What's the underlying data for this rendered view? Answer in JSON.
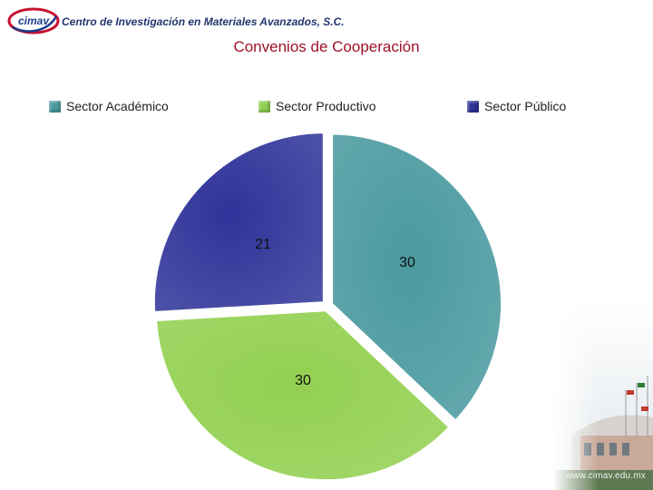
{
  "header": {
    "logo_text": "cimav",
    "org_name": "Centro de Investigación en Materiales Avanzados, S.C."
  },
  "chart_data": {
    "type": "pie",
    "title": "Convenios de Cooperación",
    "legend_position": "top",
    "series": [
      {
        "name": "Sector Académico",
        "value": 30,
        "label": "30",
        "color": "#4a9aa0"
      },
      {
        "name": "Sector Productivo",
        "value": 30,
        "label": "30",
        "color": "#92d050"
      },
      {
        "name": "Sector Público",
        "value": 21,
        "label": "21",
        "color": "#2e3399"
      }
    ]
  },
  "footer": {
    "url": "www.cimav.edu.mx"
  }
}
